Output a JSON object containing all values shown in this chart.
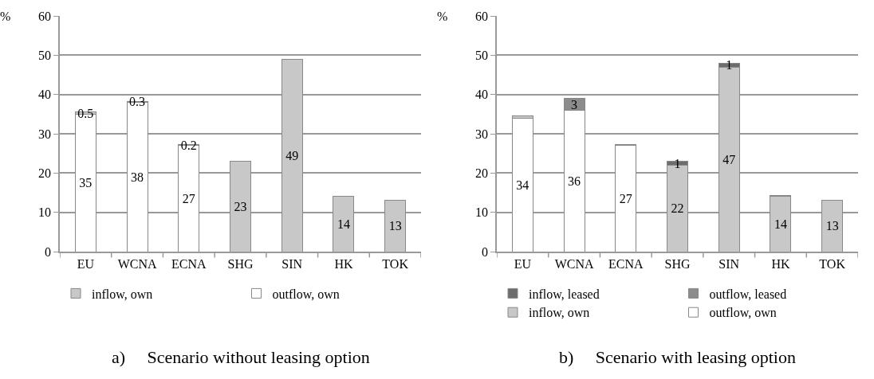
{
  "chart_data": [
    {
      "type": "bar",
      "title": "a)     Scenario without leasing option",
      "ylabel": "%",
      "categories": [
        "EU",
        "WCNA",
        "ECNA",
        "SHG",
        "SIN",
        "HK",
        "TOK"
      ],
      "stacked": true,
      "ylim": [
        0,
        60
      ],
      "yticks": [
        0,
        10,
        20,
        30,
        40,
        50,
        60
      ],
      "grid": "y",
      "legend": "bottom",
      "series": [
        {
          "name": "outflow, own",
          "color": "#ffffff",
          "values": [
            35,
            38,
            27,
            null,
            null,
            null,
            null
          ],
          "value_labels": [
            "35",
            "38",
            "27",
            null,
            null,
            null,
            null
          ]
        },
        {
          "name": "inflow, own",
          "color": "#c8c8c8",
          "values": [
            0.5,
            0.3,
            0.2,
            23,
            49,
            14,
            13
          ],
          "value_labels": [
            "0.5",
            "0.3",
            "0.2",
            "23",
            "49",
            "14",
            "13"
          ]
        }
      ]
    },
    {
      "type": "bar",
      "title": "b)     Scenario with leasing option",
      "ylabel": "%",
      "categories": [
        "EU",
        "WCNA",
        "ECNA",
        "SHG",
        "SIN",
        "HK",
        "TOK"
      ],
      "stacked": true,
      "ylim": [
        0,
        60
      ],
      "yticks": [
        0,
        10,
        20,
        30,
        40,
        50,
        60
      ],
      "grid": "y",
      "legend": "bottom",
      "series": [
        {
          "name": "outflow, own",
          "color": "#ffffff",
          "values": [
            34,
            36,
            27,
            null,
            null,
            null,
            null
          ],
          "value_labels": [
            "34",
            "36",
            "27",
            null,
            null,
            null,
            null
          ]
        },
        {
          "name": "inflow, own",
          "color": "#c8c8c8",
          "values": [
            0.5,
            null,
            null,
            22,
            47,
            14,
            13
          ],
          "value_labels": [
            null,
            null,
            null,
            "22",
            "47",
            "14",
            "13"
          ]
        },
        {
          "name": "outflow, leased",
          "color": "#8c8c8c",
          "values": [
            null,
            3,
            null,
            null,
            null,
            null,
            null
          ],
          "value_labels": [
            null,
            "3",
            null,
            null,
            null,
            null,
            null
          ]
        },
        {
          "name": "inflow, leased",
          "color": "#6d6d6d",
          "values": [
            null,
            null,
            0.3,
            1,
            1,
            0.3,
            null
          ],
          "value_labels": [
            null,
            null,
            null,
            "1",
            "1",
            null,
            null
          ]
        }
      ]
    }
  ]
}
